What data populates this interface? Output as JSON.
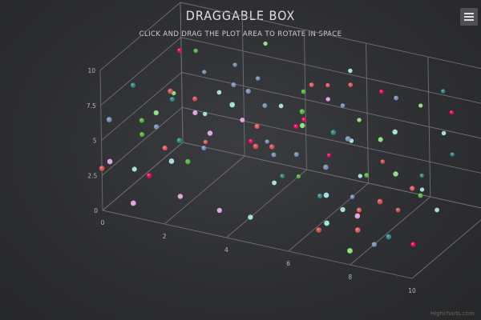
{
  "header": {
    "title": "Draggable box",
    "subtitle": "Click and drag the plot area to rotate in space"
  },
  "credit": "Highcharts.com",
  "chart_data": {
    "type": "scatter",
    "title": "Draggable box",
    "subtitle": "Click and drag the plot area to rotate in space",
    "xlabel": "",
    "ylabel": "",
    "zlabel": "",
    "xlim": [
      0,
      10
    ],
    "ylim": [
      0,
      10
    ],
    "zlim": [
      0,
      10
    ],
    "x_ticks": [
      0,
      2,
      4,
      6,
      8,
      10
    ],
    "y_ticks": [
      0,
      2.5,
      5,
      7.5,
      10
    ],
    "y_tick_labels": [
      "0",
      "2.5",
      "5",
      "7.5",
      "10"
    ],
    "grid": true,
    "legend": "none",
    "colors": [
      "#2b908f",
      "#90ee7e",
      "#f45b5b",
      "#7798bf",
      "#aaeeee",
      "#ff0066",
      "#eeaaee",
      "#55bf3b",
      "#df5353",
      "#7798bf",
      "#aaeeee"
    ],
    "series": [
      {
        "points": [
          [
            1,
            6,
            5
          ],
          [
            8,
            7,
            9
          ],
          [
            1,
            3,
            4
          ],
          [
            4,
            3,
            6
          ],
          [
            7,
            2,
            3
          ],
          [
            9,
            7,
            9
          ],
          [
            1,
            1,
            0
          ],
          [
            7,
            3,
            6
          ],
          [
            2,
            9,
            1
          ],
          [
            4,
            9,
            3
          ],
          [
            4,
            6,
            7
          ],
          [
            7,
            8,
            2
          ],
          [
            8,
            7,
            4
          ],
          [
            5,
            8,
            7
          ],
          [
            3,
            8,
            5
          ],
          [
            4,
            9,
            1
          ],
          [
            5,
            2,
            9
          ],
          [
            3,
            6,
            2
          ],
          [
            5,
            8,
            6
          ],
          [
            2,
            7,
            4
          ],
          [
            8,
            0,
            3
          ],
          [
            6,
            4,
            8
          ],
          [
            0,
            7,
            4
          ],
          [
            6,
            8,
            2
          ],
          [
            9,
            4,
            4
          ],
          [
            3,
            2,
            9
          ],
          [
            4,
            0,
            3
          ],
          [
            7,
            8,
            8
          ],
          [
            3,
            0,
            3
          ],
          [
            1,
            8,
            8
          ],
          [
            7,
            3,
            8
          ],
          [
            1,
            5,
            3
          ],
          [
            6,
            1,
            9
          ],
          [
            4,
            1,
            7
          ],
          [
            9,
            6,
            2
          ],
          [
            7,
            1,
            5
          ],
          [
            1,
            6,
            9
          ],
          [
            9,
            1,
            7
          ],
          [
            3,
            3,
            7
          ],
          [
            2,
            1,
            2
          ],
          [
            6,
            9,
            2
          ],
          [
            5,
            6,
            2
          ],
          [
            2,
            3,
            5
          ],
          [
            2,
            6,
            7
          ],
          [
            9,
            4,
            9
          ],
          [
            3,
            9,
            9
          ],
          [
            4,
            6,
            4
          ],
          [
            0,
            6,
            1
          ],
          [
            7,
            2,
            1
          ],
          [
            5,
            6,
            6
          ],
          [
            5,
            6,
            9
          ],
          [
            0,
            3,
            5
          ],
          [
            8,
            1,
            6
          ],
          [
            6,
            7,
            7
          ],
          [
            4,
            1,
            6
          ],
          [
            2,
            5,
            2
          ],
          [
            0,
            4,
            9
          ],
          [
            8,
            2,
            1
          ],
          [
            7,
            6,
            1
          ],
          [
            6,
            9,
            8
          ],
          [
            1,
            9,
            6
          ],
          [
            0,
            3,
            1
          ],
          [
            4,
            0,
            9
          ],
          [
            7,
            2,
            0
          ],
          [
            8,
            9,
            6
          ],
          [
            2,
            4,
            1
          ],
          [
            6,
            2,
            4
          ],
          [
            8,
            1,
            0
          ],
          [
            1,
            1,
            9
          ],
          [
            2,
            7,
            9
          ],
          [
            9,
            6,
            8
          ],
          [
            1,
            2,
            2
          ],
          [
            3,
            5,
            6
          ],
          [
            2,
            3,
            3
          ],
          [
            0,
            3,
            0
          ],
          [
            6,
            0,
            8
          ],
          [
            0,
            1,
            4
          ],
          [
            9,
            9,
            8
          ],
          [
            1,
            6,
            3
          ],
          [
            6,
            8,
            8
          ],
          [
            3,
            7,
            8
          ],
          [
            9,
            9,
            2
          ],
          [
            9,
            0,
            4
          ],
          [
            2,
            6,
            4
          ],
          [
            0,
            4,
            5
          ],
          [
            5,
            7,
            0
          ],
          [
            4,
            7,
            5
          ],
          [
            1,
            3,
            9
          ],
          [
            8,
            2,
            9
          ],
          [
            6,
            5,
            9
          ],
          [
            5,
            7,
            9
          ],
          [
            8,
            9,
            0
          ],
          [
            7,
            4,
            1
          ],
          [
            5,
            6,
            5
          ],
          [
            8,
            3,
            1
          ],
          [
            9,
            3,
            5
          ],
          [
            9,
            5,
            0
          ],
          [
            5,
            4,
            5
          ],
          [
            8,
            1,
            9
          ],
          [
            9,
            2,
            1
          ]
        ]
      }
    ]
  }
}
